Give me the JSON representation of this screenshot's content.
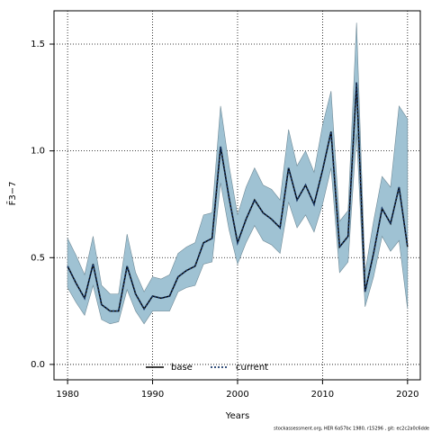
{
  "chart_data": {
    "type": "line",
    "xlabel": "Years",
    "ylabel": "F̄3−7",
    "caption": "stockassessment.org, HER 6a57bc 1980, r15296 , git: ec2c2a0c6dde",
    "x": [
      1980,
      1981,
      1982,
      1983,
      1984,
      1985,
      1986,
      1987,
      1988,
      1989,
      1990,
      1991,
      1992,
      1993,
      1994,
      1995,
      1996,
      1997,
      1998,
      1999,
      2000,
      2001,
      2002,
      2003,
      2004,
      2005,
      2006,
      2007,
      2008,
      2009,
      2010,
      2011,
      2012,
      2013,
      2014,
      2015,
      2016,
      2017,
      2018,
      2019,
      2020
    ],
    "series": [
      {
        "name": "base",
        "color": "#000000",
        "dash": false,
        "values": [
          0.46,
          0.38,
          0.31,
          0.47,
          0.28,
          0.25,
          0.25,
          0.46,
          0.33,
          0.26,
          0.32,
          0.31,
          0.32,
          0.41,
          0.44,
          0.46,
          0.57,
          0.59,
          1.02,
          0.78,
          0.57,
          0.68,
          0.77,
          0.71,
          0.68,
          0.64,
          0.92,
          0.77,
          0.84,
          0.75,
          0.91,
          1.09,
          0.55,
          0.6,
          1.32,
          0.34,
          0.52,
          0.73,
          0.66,
          0.83,
          0.55
        ]
      },
      {
        "name": "current",
        "color": "#1a3a6b",
        "dash": true,
        "values": [
          0.46,
          0.38,
          0.31,
          0.47,
          0.28,
          0.25,
          0.25,
          0.46,
          0.33,
          0.26,
          0.32,
          0.31,
          0.32,
          0.41,
          0.44,
          0.46,
          0.57,
          0.59,
          1.02,
          0.78,
          0.57,
          0.68,
          0.77,
          0.71,
          0.68,
          0.64,
          0.92,
          0.77,
          0.84,
          0.75,
          0.91,
          1.09,
          0.55,
          0.6,
          1.32,
          0.34,
          0.52,
          0.73,
          0.66,
          0.83,
          0.55
        ]
      }
    ],
    "band": {
      "color": "#9fc2d3",
      "upper": [
        0.59,
        0.51,
        0.42,
        0.6,
        0.37,
        0.33,
        0.33,
        0.61,
        0.43,
        0.34,
        0.41,
        0.4,
        0.42,
        0.52,
        0.55,
        0.57,
        0.7,
        0.71,
        1.21,
        0.93,
        0.7,
        0.83,
        0.92,
        0.84,
        0.82,
        0.77,
        1.1,
        0.93,
        1.0,
        0.9,
        1.12,
        1.28,
        0.67,
        0.72,
        1.6,
        0.43,
        0.67,
        0.88,
        0.83,
        1.21,
        1.15
      ],
      "lower": [
        0.36,
        0.29,
        0.23,
        0.37,
        0.21,
        0.19,
        0.2,
        0.35,
        0.25,
        0.19,
        0.25,
        0.25,
        0.25,
        0.34,
        0.36,
        0.37,
        0.47,
        0.48,
        0.85,
        0.63,
        0.47,
        0.57,
        0.65,
        0.58,
        0.56,
        0.52,
        0.76,
        0.64,
        0.7,
        0.62,
        0.75,
        0.92,
        0.43,
        0.48,
        1.08,
        0.27,
        0.41,
        0.6,
        0.53,
        0.58,
        0.26
      ]
    },
    "xlim": [
      1978.4,
      2021.5
    ],
    "ylim": [
      -0.072,
      1.656
    ],
    "xticks": [
      1980,
      1990,
      2000,
      2010,
      2020
    ],
    "yticks": [
      {
        "value": 0,
        "label": "0.0"
      },
      0.5,
      {
        "value": 1,
        "label": "1.0"
      },
      1.5
    ],
    "grid": true,
    "legend": "bottom"
  }
}
